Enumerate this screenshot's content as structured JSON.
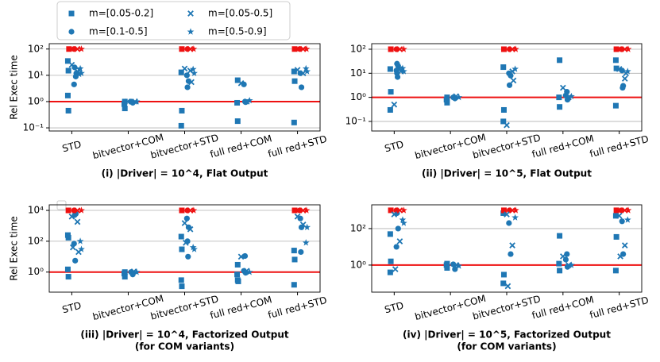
{
  "chart_data": [
    {
      "type": "scatter",
      "title": "(i) |Driver| = 10^4, Flat Output",
      "ylabel": "Rel Exec time",
      "categories": [
        "STD",
        "bitvector+COM",
        "bitvector+STD",
        "full red+COM",
        "full red+STD"
      ],
      "xlim": [
        -0.4,
        4.4
      ],
      "ylim": [
        0.076,
        160
      ],
      "log_y": true,
      "grid": true,
      "yticks": [
        {
          "value": 0.1,
          "label": "10⁻¹"
        },
        {
          "value": 1,
          "label": "10⁰"
        },
        {
          "value": 10,
          "label": "10¹"
        },
        {
          "value": 100,
          "label": "10²"
        }
      ],
      "reference_line": {
        "value": 1,
        "color": "#ee1111"
      },
      "timeout_color": "#ee1111",
      "series": [
        {
          "name": "m=[0.05-0.2]",
          "marker": "square",
          "color": "#1f77b4",
          "x": [
            -0.07,
            -0.06,
            -0.07,
            -0.06,
            0.94,
            0.93,
            0.94,
            1.94,
            1.95,
            1.94,
            2.94,
            2.93,
            2.94,
            3.94,
            3.95,
            3.94
          ],
          "values": [
            35,
            15,
            1.7,
            0.45,
            1.0,
            0.8,
            0.55,
            13,
            0.45,
            0.12,
            6.5,
            0.9,
            0.18,
            14,
            6,
            0.16
          ],
          "timeout_x": [
            -0.05,
            1.95,
            3.95
          ],
          "timeout_values": [
            100,
            100,
            100
          ]
        },
        {
          "name": "m=[0.1-0.5]",
          "marker": "circle",
          "color": "#1f77b4",
          "x": [
            0.05,
            0.08,
            0.04,
            0.07,
            1.05,
            1.08,
            2.04,
            2.07,
            2.05,
            3.07,
            3.05,
            3.08,
            4.05,
            4.07
          ],
          "values": [
            20,
            12,
            4.5,
            9,
            1.0,
            0.9,
            10,
            6,
            3.5,
            1.0,
            4.5,
            0.95,
            12,
            3.5
          ],
          "timeout_x": [
            0.04,
            2.05,
            4.04
          ],
          "timeout_values": [
            100,
            100,
            100
          ]
        },
        {
          "name": "m=[0.05-0.5]",
          "marker": "x",
          "color": "#1f77b4",
          "x": [
            0.0,
            0.1,
            0.13,
            0.99,
            1.12,
            2.0,
            2.1,
            2.12,
            3.0,
            3.1,
            4.0,
            4.1
          ],
          "values": [
            25,
            14,
            16,
            1.0,
            1.0,
            18,
            15,
            5.5,
            5,
            1.0,
            16,
            12
          ],
          "timeout_x": [
            0.1,
            2.1,
            4.1
          ],
          "timeout_values": [
            100,
            100,
            100
          ]
        },
        {
          "name": "m=[0.5-0.9]",
          "marker": "star",
          "color": "#1f77b4",
          "x": [
            0.15,
            0.17,
            0.13,
            1.15,
            2.15,
            2.17,
            3.15,
            4.15,
            4.17
          ],
          "values": [
            18,
            12,
            11,
            1.0,
            17,
            12,
            1.1,
            18,
            14
          ],
          "timeout_x": [
            0.17,
            2.16,
            4.16
          ],
          "timeout_values": [
            100,
            100,
            100
          ]
        }
      ]
    },
    {
      "type": "scatter",
      "title": "(ii) |Driver| = 10^5, Flat Output",
      "categories": [
        "STD",
        "bitvector+COM",
        "bitvector+STD",
        "full red+COM",
        "full red+STD"
      ],
      "xlim": [
        -0.4,
        4.4
      ],
      "ylim": [
        0.04,
        170
      ],
      "log_y": true,
      "grid": true,
      "yticks": [
        {
          "value": 0.1,
          "label": "10⁻¹"
        },
        {
          "value": 1,
          "label": "10⁰"
        },
        {
          "value": 10,
          "label": "10¹"
        },
        {
          "value": 100,
          "label": "10²"
        }
      ],
      "reference_line": {
        "value": 1,
        "color": "#ee1111"
      },
      "timeout_color": "#ee1111",
      "series": [
        {
          "marker": "square",
          "color": "#1f77b4",
          "x": [
            -0.07,
            -0.06,
            -0.07,
            0.94,
            0.93,
            0.94,
            1.94,
            1.95,
            1.94,
            2.94,
            2.93,
            2.94,
            3.94,
            3.95,
            3.94
          ],
          "values": [
            15,
            1.7,
            0.3,
            1.0,
            0.8,
            0.6,
            18,
            0.3,
            0.1,
            35,
            1.0,
            0.4,
            35,
            16,
            0.45
          ],
          "timeout_x": [
            -0.06,
            1.95,
            3.95
          ],
          "timeout_values": [
            100,
            100,
            100
          ]
        },
        {
          "marker": "circle",
          "color": "#1f77b4",
          "x": [
            0.05,
            0.07,
            0.04,
            0.06,
            0.05,
            1.05,
            1.08,
            2.04,
            2.07,
            2.05,
            3.07,
            3.05,
            3.08,
            4.05,
            4.07,
            4.06
          ],
          "values": [
            25,
            20,
            13,
            7,
            10,
            1.0,
            0.9,
            10,
            8,
            3.2,
            1.7,
            1.2,
            0.8,
            13,
            3,
            2.5
          ],
          "timeout_x": [
            0.04,
            2.05,
            4.04
          ],
          "timeout_values": [
            100,
            100,
            100
          ]
        },
        {
          "marker": "x",
          "color": "#1f77b4",
          "x": [
            0.0,
            0.1,
            0.12,
            1.1,
            2.0,
            2.1,
            2.12,
            3.0,
            3.1,
            4.0,
            4.1,
            4.12
          ],
          "values": [
            0.5,
            15,
            12,
            1.1,
            0.07,
            12,
            5,
            2.5,
            1.0,
            15,
            6,
            10
          ],
          "timeout_x": [
            0.1,
            2.1,
            4.1
          ],
          "timeout_values": [
            100,
            100,
            100
          ]
        },
        {
          "marker": "star",
          "color": "#1f77b4",
          "x": [
            0.15,
            0.17,
            1.15,
            2.15,
            3.15,
            4.15
          ],
          "values": [
            16,
            12,
            1.0,
            15,
            1.1,
            12
          ],
          "timeout_x": [
            0.17,
            2.16,
            4.16
          ],
          "timeout_values": [
            100,
            100,
            100
          ]
        }
      ]
    },
    {
      "type": "scatter",
      "title": "(iii)  |Driver| = 10^4, Factorized Output",
      "subtitle": "(for COM variants)",
      "ylabel": "Rel Exec time",
      "categories": [
        "STD",
        "bitvector+COM",
        "bitvector+STD",
        "full red+COM",
        "full red+STD"
      ],
      "xlim": [
        -0.4,
        4.4
      ],
      "ylim": [
        0.05,
        23000
      ],
      "log_y": true,
      "grid": true,
      "yticks": [
        {
          "value": 1,
          "label": "10⁰"
        },
        {
          "value": 100,
          "label": "10²"
        },
        {
          "value": 10000,
          "label": "10⁴"
        }
      ],
      "reference_line": {
        "value": 1,
        "color": "#ee1111"
      },
      "timeout_color": "#ee1111",
      "series": [
        {
          "marker": "square",
          "color": "#1f77b4",
          "x": [
            -0.07,
            -0.06,
            -0.07,
            -0.06,
            0.94,
            0.93,
            0.94,
            1.94,
            1.95,
            1.94,
            1.95,
            2.94,
            2.93,
            2.94,
            2.95,
            3.94,
            3.95,
            3.94
          ],
          "values": [
            250,
            170,
            1.5,
            0.5,
            1.0,
            0.8,
            0.5,
            200,
            30,
            0.3,
            0.12,
            3,
            0.7,
            0.3,
            0.25,
            25,
            6.5,
            0.15
          ],
          "timeout_x": [
            -0.06,
            1.95,
            3.95
          ],
          "timeout_values": [
            10000,
            10000,
            10000
          ]
        },
        {
          "marker": "circle",
          "color": "#1f77b4",
          "x": [
            0.05,
            0.07,
            0.04,
            0.06,
            1.05,
            1.08,
            2.04,
            2.07,
            2.05,
            2.06,
            3.07,
            3.05,
            3.08,
            4.05,
            4.07,
            4.06
          ],
          "values": [
            5000,
            6000,
            70,
            5.5,
            1.0,
            0.7,
            3000,
            800,
            100,
            10,
            11,
            1.2,
            0.9,
            3000,
            800,
            20
          ],
          "timeout_x": [
            0.04,
            2.05,
            4.04
          ],
          "timeout_values": [
            10000,
            10000,
            10000
          ]
        },
        {
          "marker": "x",
          "color": "#1f77b4",
          "x": [
            0.0,
            0.1,
            0.02,
            0.12,
            1.1,
            2.0,
            2.1,
            2.02,
            3.0,
            3.1,
            4.0,
            4.1
          ],
          "values": [
            4000,
            1800,
            40,
            20,
            1.1,
            1500,
            600,
            80,
            10,
            1.2,
            4000,
            1200
          ],
          "timeout_x": [
            0.1,
            2.1,
            4.1
          ],
          "timeout_values": [
            10000,
            10000,
            10000
          ]
        },
        {
          "marker": "star",
          "color": "#1f77b4",
          "x": [
            0.15,
            0.17,
            1.15,
            2.15,
            2.17,
            3.15,
            4.15,
            4.17
          ],
          "values": [
            100,
            30,
            1.0,
            40,
            30,
            1.0,
            80,
            800
          ],
          "timeout_x": [
            0.17,
            2.16,
            4.16
          ],
          "timeout_values": [
            10000,
            10000,
            10000
          ]
        }
      ]
    },
    {
      "type": "scatter",
      "title": "(iv)  |Driver| = 10^5, Factorized Output",
      "subtitle": "(for COM variants)",
      "categories": [
        "STD",
        "bitvector+COM",
        "bitvector+STD",
        "full red+COM",
        "full red+STD"
      ],
      "xlim": [
        -0.4,
        4.4
      ],
      "ylim": [
        0.033,
        2000
      ],
      "log_y": true,
      "grid": true,
      "yticks": [
        {
          "value": 1,
          "label": "10⁰"
        },
        {
          "value": 100,
          "label": "10²"
        }
      ],
      "reference_line": {
        "value": 1,
        "color": "#ee1111"
      },
      "timeout_color": "#ee1111",
      "series": [
        {
          "marker": "square",
          "color": "#1f77b4",
          "x": [
            -0.07,
            -0.06,
            -0.07,
            0.94,
            0.93,
            0.94,
            1.94,
            1.95,
            1.94,
            2.94,
            2.93,
            2.94,
            3.94,
            3.95,
            3.94
          ],
          "values": [
            50,
            1.6,
            0.4,
            1.2,
            1.0,
            0.7,
            700,
            0.3,
            0.1,
            40,
            1.2,
            0.5,
            500,
            35,
            0.5
          ],
          "timeout_x": [
            -0.06,
            1.95,
            3.95
          ],
          "timeout_values": [
            1000,
            1000,
            1000
          ]
        },
        {
          "marker": "circle",
          "color": "#1f77b4",
          "x": [
            0.05,
            0.07,
            0.04,
            1.05,
            1.08,
            2.04,
            2.07,
            3.07,
            3.05,
            3.08,
            4.05,
            4.07
          ],
          "values": [
            700,
            100,
            10,
            1.1,
            0.6,
            200,
            4,
            4,
            2,
            0.8,
            250,
            4
          ],
          "timeout_x": [
            0.04,
            2.05,
            4.04
          ],
          "timeout_values": [
            1000,
            1000,
            1000
          ]
        },
        {
          "marker": "x",
          "color": "#1f77b4",
          "x": [
            0.0,
            0.1,
            0.02,
            1.1,
            2.0,
            2.1,
            2.02,
            3.0,
            3.1,
            4.0,
            4.1,
            4.02
          ],
          "values": [
            600,
            20,
            0.6,
            1.0,
            600,
            12,
            0.07,
            3,
            1.0,
            500,
            12,
            3
          ],
          "timeout_x": [
            0.1,
            2.1,
            4.1
          ],
          "timeout_values": [
            1000,
            1000,
            1000
          ]
        },
        {
          "marker": "star",
          "color": "#1f77b4",
          "x": [
            0.15,
            0.17,
            1.15,
            2.15,
            3.15,
            4.15
          ],
          "values": [
            300,
            200,
            0.9,
            400,
            1.0,
            300
          ],
          "timeout_x": [
            0.17,
            2.16,
            4.16
          ],
          "timeout_values": [
            1000,
            1000,
            1000
          ]
        }
      ]
    }
  ]
}
